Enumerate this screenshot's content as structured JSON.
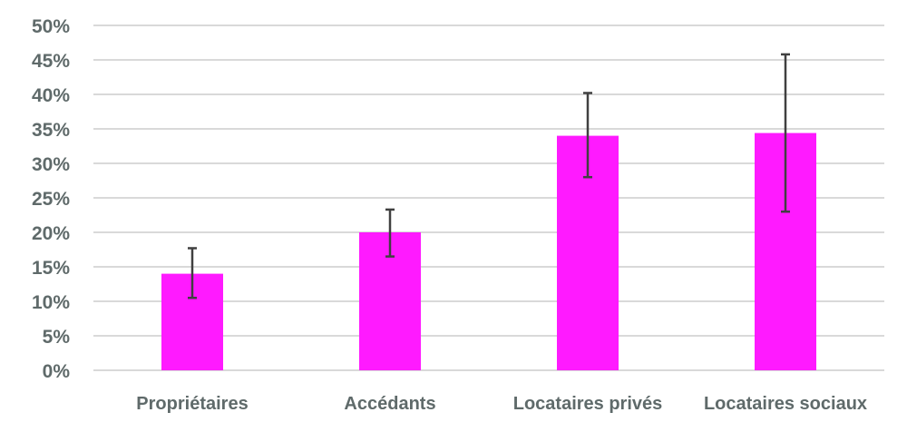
{
  "chart_data": {
    "type": "bar",
    "categories": [
      "Propriétaires",
      "Accédants",
      "Locataires privés",
      "Locataires sociaux"
    ],
    "values": [
      14,
      20,
      34,
      34.4
    ],
    "error_low": [
      10.5,
      16.5,
      28,
      23
    ],
    "error_high": [
      17.7,
      23.3,
      40.2,
      45.8
    ],
    "ylim": [
      0,
      50
    ],
    "y_ticks": [
      0,
      5,
      10,
      15,
      20,
      25,
      30,
      35,
      40,
      45,
      50
    ],
    "y_tick_suffix": "%",
    "grid": true,
    "legend": "none",
    "bar_color": "#ff1aff",
    "error_color": "#404040",
    "grid_color": "#d9d9d9"
  }
}
